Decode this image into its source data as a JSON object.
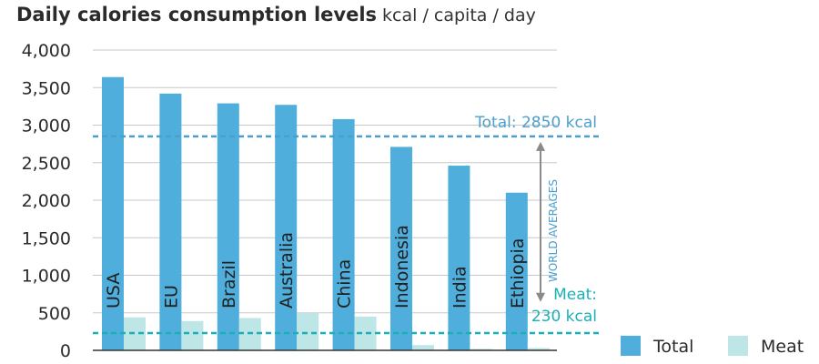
{
  "chart_data": {
    "type": "bar",
    "title": "Daily calories consumption levels",
    "subtitle": "kcal / capita / day",
    "categories": [
      "USA",
      "EU",
      "Brazil",
      "Australia",
      "China",
      "Indonesia",
      "India",
      "Ethiopia"
    ],
    "series": [
      {
        "name": "Total",
        "color": "#4faedb",
        "values": [
          3640,
          3420,
          3290,
          3270,
          3080,
          2710,
          2460,
          2100
        ]
      },
      {
        "name": "Meat",
        "color": "#bfe6e6",
        "values": [
          440,
          390,
          430,
          500,
          450,
          70,
          20,
          30
        ]
      }
    ],
    "ylim": [
      0,
      4000
    ],
    "yticks": [
      0,
      500,
      1000,
      1500,
      2000,
      2500,
      3000,
      3500,
      4000
    ],
    "ytick_labels": [
      "0",
      "500",
      "1,000",
      "1,500",
      "2,000",
      "2,500",
      "3,000",
      "3,500",
      "4,000"
    ],
    "grid": true,
    "legend_position": "bottom-right",
    "reference_lines": [
      {
        "value": 2850,
        "label": "Total: 2850 kcal",
        "color": "#4a9fce"
      },
      {
        "value": 230,
        "label_line1": "Meat:",
        "label_line2": "230 kcal",
        "color": "#1ab0b5"
      }
    ],
    "annotation": "WORLD AVERAGES"
  }
}
